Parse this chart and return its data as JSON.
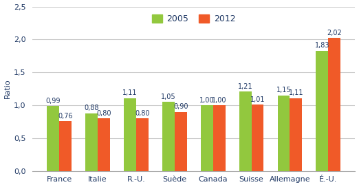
{
  "categories": [
    "France",
    "Italie",
    "R.-U.",
    "Suède",
    "Canada",
    "Suisse",
    "Allemagne",
    "É.-U."
  ],
  "values_2005": [
    0.99,
    0.88,
    1.11,
    1.05,
    1.0,
    1.21,
    1.15,
    1.83
  ],
  "values_2012": [
    0.76,
    0.8,
    0.8,
    0.9,
    1.0,
    1.01,
    1.11,
    2.02
  ],
  "color_2005": "#92C83E",
  "color_2012": "#F05A28",
  "ylabel": "Ratio",
  "ylim": [
    0.0,
    2.5
  ],
  "yticks": [
    0.0,
    0.5,
    1.0,
    1.5,
    2.0,
    2.5
  ],
  "ytick_labels": [
    "0,0",
    "0,5",
    "1,0",
    "1,5",
    "2,0",
    "2,5"
  ],
  "legend_2005": "2005",
  "legend_2012": "2012",
  "bar_width": 0.32,
  "background_color": "#ffffff",
  "plot_bg_color": "#ffffff",
  "grid_color": "#cccccc",
  "label_fontsize": 7.0,
  "axis_fontsize": 8.0,
  "legend_fontsize": 9.0,
  "label_color": "#1F3864",
  "xtick_color": "#1F3864"
}
